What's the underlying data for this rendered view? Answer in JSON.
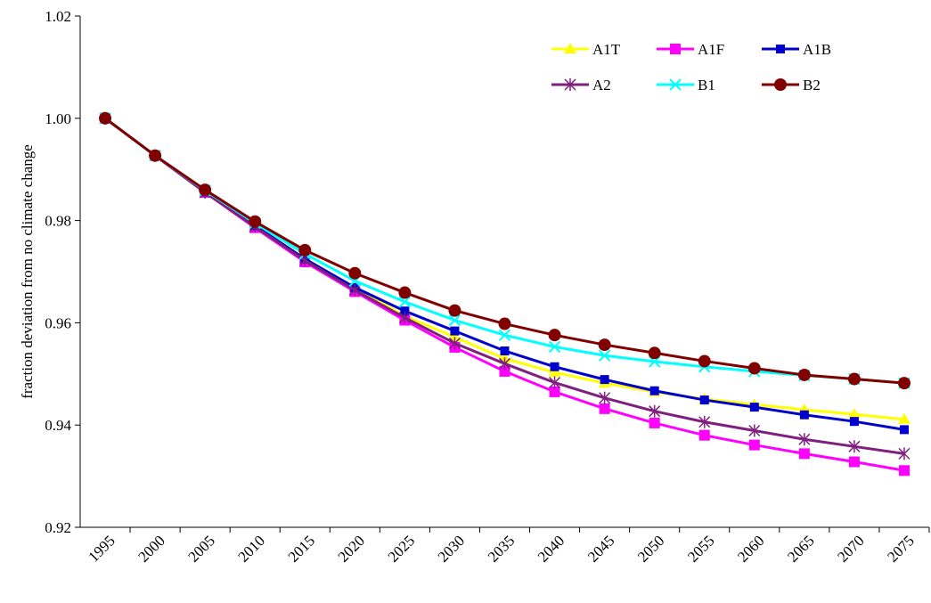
{
  "chart_data": {
    "type": "line",
    "y_label": "fraction deviation from no climate change",
    "categories": [
      "1995",
      "2000",
      "2005",
      "2010",
      "2015",
      "2020",
      "2025",
      "2030",
      "2035",
      "2040",
      "2045",
      "2050",
      "2055",
      "2060",
      "2065",
      "2070",
      "2075"
    ],
    "ylim": [
      0.92,
      1.02
    ],
    "yticks": [
      0.92,
      0.94,
      0.96,
      0.98,
      {
        "value": 1,
        "label": "1.00"
      },
      1.02
    ],
    "legend": "top-right",
    "series": [
      {
        "name": "A1T",
        "color": "#ffff00",
        "marker": "triangle",
        "values": [
          1,
          0.9927,
          0.9856,
          0.979,
          0.9725,
          0.9669,
          0.9613,
          0.9572,
          0.953,
          0.9503,
          0.9482,
          0.9465,
          0.9451,
          0.944,
          0.943,
          0.9421,
          0.9411
        ]
      },
      {
        "name": "A1F",
        "color": "#ff00ff",
        "marker": "square",
        "values": [
          1,
          0.9927,
          0.9855,
          0.9786,
          0.9719,
          0.9661,
          0.9605,
          0.9552,
          0.9505,
          0.9465,
          0.9432,
          0.9404,
          0.938,
          0.9361,
          0.9344,
          0.9328,
          0.9311
        ]
      },
      {
        "name": "A1B",
        "color": "#0000cc",
        "marker": "small-square",
        "values": [
          1,
          0.9927,
          0.9856,
          0.979,
          0.9725,
          0.9669,
          0.9623,
          0.9584,
          0.9545,
          0.9514,
          0.9489,
          0.9467,
          0.9449,
          0.9435,
          0.942,
          0.9407,
          0.9391
        ]
      },
      {
        "name": "A2",
        "color": "#7f1f7f",
        "marker": "asterisk",
        "values": [
          1,
          0.9927,
          0.9855,
          0.9788,
          0.9722,
          0.9664,
          0.961,
          0.956,
          0.952,
          0.9483,
          0.9453,
          0.9427,
          0.9406,
          0.9389,
          0.9372,
          0.9358,
          0.9344
        ]
      },
      {
        "name": "B1",
        "color": "#00ffff",
        "marker": "x",
        "values": [
          1,
          0.9927,
          0.9859,
          0.9795,
          0.9735,
          0.9682,
          0.9641,
          0.9605,
          0.9576,
          0.9553,
          0.9536,
          0.9524,
          0.9514,
          0.9505,
          0.9497,
          0.949,
          0.9482
        ]
      },
      {
        "name": "B2",
        "color": "#800000",
        "marker": "circle",
        "values": [
          1,
          0.9927,
          0.986,
          0.9798,
          0.9742,
          0.9697,
          0.9659,
          0.9624,
          0.9598,
          0.9576,
          0.9557,
          0.9541,
          0.9525,
          0.9511,
          0.9498,
          0.949,
          0.9482
        ]
      }
    ]
  }
}
